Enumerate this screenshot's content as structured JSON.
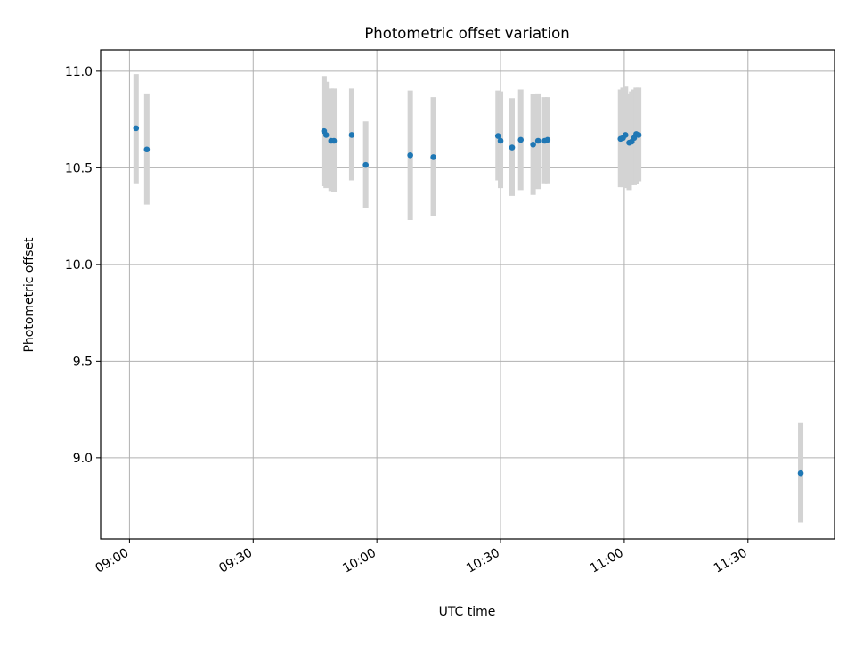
{
  "chart_data": {
    "type": "scatter",
    "title": "Photometric offset variation",
    "xlabel": "UTC time",
    "ylabel": "Photometric offset",
    "xlim": [
      "08:53",
      "11:51"
    ],
    "ylim": [
      8.58,
      11.11
    ],
    "x_ticks": [
      "09:00",
      "09:30",
      "10:00",
      "10:30",
      "11:00",
      "11:30"
    ],
    "y_ticks": [
      9.0,
      9.5,
      10.0,
      10.5,
      11.0
    ],
    "y_tick_labels": [
      "9.0",
      "9.5",
      "10.0",
      "10.5",
      "11.0"
    ],
    "grid": true,
    "series": [
      {
        "marker_color": "#1f77b4",
        "errorbar_color": "#d3d3d3",
        "points": [
          {
            "x": "09:01:36",
            "y": 10.705,
            "err_low": 10.42,
            "err_high": 10.985
          },
          {
            "x": "09:04:12",
            "y": 10.595,
            "err_low": 10.31,
            "err_high": 10.885
          },
          {
            "x": "09:47:12",
            "y": 10.69,
            "err_low": 10.405,
            "err_high": 10.975
          },
          {
            "x": "09:47:42",
            "y": 10.67,
            "err_low": 10.395,
            "err_high": 10.945
          },
          {
            "x": "09:48:54",
            "y": 10.64,
            "err_low": 10.38,
            "err_high": 10.91
          },
          {
            "x": "09:49:36",
            "y": 10.64,
            "err_low": 10.375,
            "err_high": 10.91
          },
          {
            "x": "09:53:54",
            "y": 10.67,
            "err_low": 10.435,
            "err_high": 10.91
          },
          {
            "x": "09:57:18",
            "y": 10.515,
            "err_low": 10.29,
            "err_high": 10.74
          },
          {
            "x": "10:08:06",
            "y": 10.565,
            "err_low": 10.23,
            "err_high": 10.9
          },
          {
            "x": "10:13:42",
            "y": 10.555,
            "err_low": 10.25,
            "err_high": 10.865
          },
          {
            "x": "10:29:24",
            "y": 10.665,
            "err_low": 10.435,
            "err_high": 10.9
          },
          {
            "x": "10:30:00",
            "y": 10.64,
            "err_low": 10.395,
            "err_high": 10.895
          },
          {
            "x": "10:32:48",
            "y": 10.605,
            "err_low": 10.355,
            "err_high": 10.86
          },
          {
            "x": "10:34:54",
            "y": 10.645,
            "err_low": 10.385,
            "err_high": 10.905
          },
          {
            "x": "10:37:54",
            "y": 10.62,
            "err_low": 10.36,
            "err_high": 10.88
          },
          {
            "x": "10:39:06",
            "y": 10.64,
            "err_low": 10.39,
            "err_high": 10.885
          },
          {
            "x": "10:40:42",
            "y": 10.64,
            "err_low": 10.42,
            "err_high": 10.865
          },
          {
            "x": "10:41:24",
            "y": 10.645,
            "err_low": 10.42,
            "err_high": 10.865
          },
          {
            "x": "10:59:06",
            "y": 10.65,
            "err_low": 10.4,
            "err_high": 10.905
          },
          {
            "x": "10:59:42",
            "y": 10.655,
            "err_low": 10.4,
            "err_high": 10.915
          },
          {
            "x": "11:00:18",
            "y": 10.67,
            "err_low": 10.395,
            "err_high": 10.92
          },
          {
            "x": "11:01:12",
            "y": 10.63,
            "err_low": 10.385,
            "err_high": 10.885
          },
          {
            "x": "11:01:48",
            "y": 10.635,
            "err_low": 10.41,
            "err_high": 10.895
          },
          {
            "x": "11:02:24",
            "y": 10.655,
            "err_low": 10.41,
            "err_high": 10.905
          },
          {
            "x": "11:02:54",
            "y": 10.675,
            "err_low": 10.415,
            "err_high": 10.915
          },
          {
            "x": "11:03:30",
            "y": 10.67,
            "err_low": 10.43,
            "err_high": 10.915
          },
          {
            "x": "11:42:48",
            "y": 8.92,
            "err_low": 8.665,
            "err_high": 9.18
          }
        ]
      }
    ]
  }
}
